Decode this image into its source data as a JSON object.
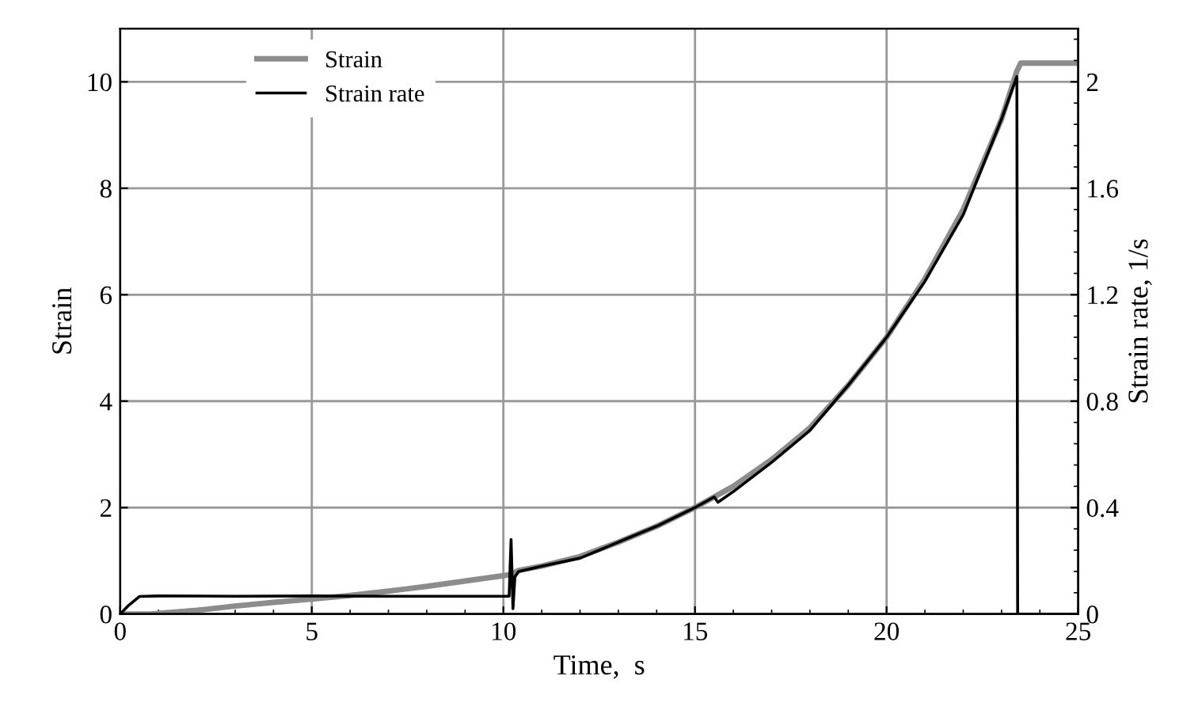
{
  "chart_data": {
    "type": "line",
    "xlabel": "Time,  s",
    "ylabel": "Strain",
    "y2label": "Strain rate, 1/s",
    "xlim": [
      0,
      25
    ],
    "xticks": [
      0,
      5,
      10,
      15,
      20,
      25
    ],
    "ylim": [
      0,
      11
    ],
    "yticks": [
      0,
      2,
      4,
      6,
      8,
      10
    ],
    "y2lim": [
      0,
      2.2
    ],
    "y2ticks": [
      0,
      0.4,
      0.8,
      1.2,
      1.6,
      2
    ],
    "grid": true,
    "legend": "top left",
    "marker": "none",
    "line_style": "solid",
    "series": [
      {
        "name": "Strain",
        "color": "#8c8c8c",
        "x": [
          0,
          0.8,
          2,
          3,
          4,
          5,
          6,
          7,
          8,
          9,
          10,
          10.2,
          10.4,
          11,
          12,
          13,
          14,
          15,
          16,
          17,
          18,
          19,
          20,
          21,
          22,
          23,
          23.4,
          23.5,
          25
        ],
        "values": [
          0,
          0,
          0.07,
          0.15,
          0.22,
          0.28,
          0.35,
          0.43,
          0.52,
          0.62,
          0.72,
          0.75,
          0.82,
          0.9,
          1.08,
          1.35,
          1.65,
          2.0,
          2.4,
          2.9,
          3.5,
          4.3,
          5.2,
          6.3,
          7.6,
          9.3,
          10.2,
          10.35,
          10.35
        ]
      },
      {
        "name": "Strain rate",
        "color": "#000000",
        "axis": "y2",
        "x": [
          0,
          0.2,
          0.5,
          1,
          3,
          5,
          7,
          9,
          10.15,
          10.2,
          10.25,
          10.3,
          10.4,
          11,
          12,
          13,
          14,
          15,
          15.5,
          15.6,
          16,
          17,
          18,
          19,
          20,
          21,
          22,
          23,
          23.4,
          23.42,
          24,
          25
        ],
        "values": [
          0,
          0.03,
          0.066,
          0.068,
          0.067,
          0.068,
          0.067,
          0.067,
          0.067,
          0.28,
          0.02,
          0.14,
          0.16,
          0.18,
          0.21,
          0.27,
          0.33,
          0.4,
          0.44,
          0.42,
          0.46,
          0.57,
          0.69,
          0.86,
          1.04,
          1.25,
          1.5,
          1.86,
          2.02,
          0,
          0,
          0
        ]
      }
    ]
  }
}
